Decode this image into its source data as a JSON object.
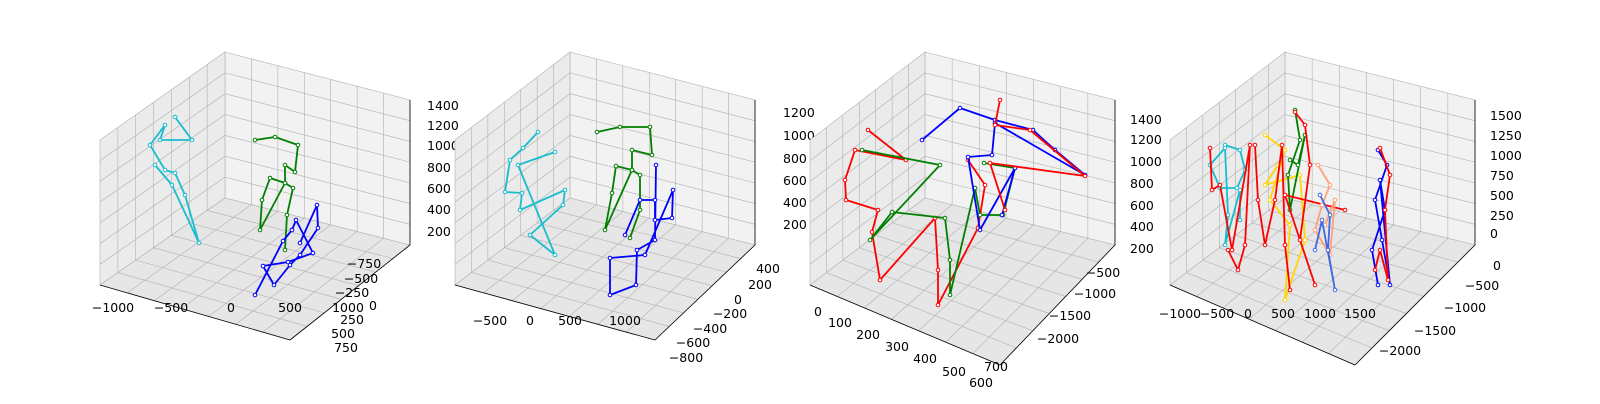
{
  "figure": {
    "background": "#ffffff",
    "pane_colors": [
      "#f2f2f2",
      "#ebebeb",
      "#e6e6e6"
    ],
    "grid_color": "#b0b0b0"
  },
  "chart_data": [
    {
      "type": "skeleton-3d",
      "x_ticks": [
        "−1000",
        "−500",
        "0",
        "500",
        "1000"
      ],
      "y_ticks": [
        "−750",
        "−500",
        "−250",
        "0",
        "250",
        "500",
        "750"
      ],
      "z_ticks": [
        "200",
        "400",
        "600",
        "800",
        "1000",
        "1200",
        "1400"
      ],
      "z_tick_labels": [
        "200",
        "400",
        "600",
        "800",
        "1000",
        "1200",
        "1400"
      ],
      "series": [
        {
          "color": "#17becf",
          "points": [
            [
              175,
              117
            ],
            [
              192,
              140
            ],
            [
              160,
              140
            ],
            [
              165,
              125
            ],
            [
              150,
              145
            ],
            [
              165,
              170
            ],
            [
              175,
              173
            ],
            [
              185,
              195
            ],
            [
              199,
              243
            ],
            [
              172,
              185
            ],
            [
              155,
              165
            ]
          ]
        },
        {
          "color": "#008000",
          "points": [
            [
              255,
              140
            ],
            [
              275,
              137
            ],
            [
              298,
              145
            ],
            [
              295,
              172
            ],
            [
              285,
              165
            ],
            [
              285,
              183
            ],
            [
              270,
              178
            ],
            [
              262,
              200
            ],
            [
              260,
              230
            ],
            [
              285,
              183
            ],
            [
              293,
              188
            ],
            [
              287,
              215
            ],
            [
              285,
              250
            ]
          ]
        },
        {
          "color": "#0000ff",
          "points": [
            [
              300,
              243
            ],
            [
              317,
              205
            ],
            [
              318,
              228
            ],
            [
              300,
              255
            ],
            [
              290,
              265
            ],
            [
              274,
              285
            ],
            [
              263,
              266
            ],
            [
              288,
              262
            ],
            [
              313,
              253
            ],
            [
              296,
              220
            ],
            [
              292,
              230
            ],
            [
              283,
              241
            ],
            [
              255,
              295
            ]
          ]
        }
      ]
    },
    {
      "type": "skeleton-3d",
      "x_ticks": [
        "−500",
        "0",
        "500",
        "1000"
      ],
      "y_ticks": [
        "−800",
        "−600",
        "−400",
        "−200",
        "0",
        "200",
        "400"
      ],
      "z_ticks": [
        "200",
        "400",
        "600",
        "800",
        "1000",
        "1200"
      ],
      "z_tick_labels": [
        "200",
        "400",
        "600",
        "800",
        "1000",
        "1200"
      ],
      "series": [
        {
          "color": "#17becf",
          "points": [
            [
              538,
              132
            ],
            [
              523,
              148
            ],
            [
              510,
              160
            ],
            [
              505,
              192
            ],
            [
              522,
              193
            ],
            [
              520,
              210
            ],
            [
              565,
              190
            ],
            [
              563,
              205
            ],
            [
              530,
              235
            ],
            [
              555,
              255
            ],
            [
              518,
              165
            ],
            [
              555,
              152
            ]
          ]
        },
        {
          "color": "#008000",
          "points": [
            [
              597,
              132
            ],
            [
              620,
              127
            ],
            [
              650,
              127
            ],
            [
              652,
              155
            ],
            [
              632,
              150
            ],
            [
              632,
              170
            ],
            [
              616,
              166
            ],
            [
              612,
              193
            ],
            [
              605,
              230
            ],
            [
              632,
              170
            ],
            [
              640,
              175
            ],
            [
              640,
              210
            ],
            [
              630,
              238
            ]
          ]
        },
        {
          "color": "#0000ff",
          "points": [
            [
              656,
              165
            ],
            [
              655,
              240
            ],
            [
              637,
              250
            ],
            [
              636,
              285
            ],
            [
              610,
              295
            ],
            [
              610,
              258
            ],
            [
              645,
              255
            ],
            [
              673,
              190
            ],
            [
              672,
              218
            ],
            [
              655,
              220
            ],
            [
              655,
              200
            ],
            [
              640,
              200
            ],
            [
              625,
              235
            ]
          ]
        }
      ]
    },
    {
      "type": "skeleton-3d",
      "x_ticks": [
        "0",
        "100",
        "200",
        "300",
        "400",
        "500",
        "600",
        "700"
      ],
      "y_ticks": [
        "−2000",
        "−1500",
        "−1000",
        "−500"
      ],
      "z_ticks": [
        "200",
        "400",
        "600",
        "800",
        "1000",
        "1200",
        "1400"
      ],
      "z_tick_labels": [
        "200",
        "400",
        "600",
        "800",
        "1000",
        "1200",
        "1400"
      ],
      "series": [
        {
          "color": "#ff0000",
          "points": [
            [
              868,
              130
            ],
            [
              906,
              160
            ],
            [
              855,
              150
            ],
            [
              845,
              180
            ],
            [
              846,
              200
            ],
            [
              878,
              210
            ],
            [
              872,
              232
            ],
            [
              880,
              280
            ],
            [
              935,
              218
            ],
            [
              938,
              270
            ],
            [
              938,
              305
            ],
            [
              978,
              228
            ],
            [
              985,
              185
            ],
            [
              968,
              160
            ]
          ]
        },
        {
          "color": "#008000",
          "points": [
            [
              862,
              150
            ],
            [
              940,
              165
            ],
            [
              870,
              240
            ],
            [
              892,
              212
            ],
            [
              945,
              218
            ],
            [
              950,
              260
            ],
            [
              950,
              295
            ],
            [
              975,
              188
            ],
            [
              980,
              215
            ],
            [
              1003,
              215
            ],
            [
              1015,
              168
            ],
            [
              984,
              163
            ]
          ]
        },
        {
          "color": "#0000ff",
          "points": [
            [
              922,
              140
            ],
            [
              960,
              108
            ],
            [
              995,
              120
            ],
            [
              1033,
              130
            ],
            [
              1055,
              150
            ],
            [
              1085,
              175
            ],
            [
              995,
              123
            ],
            [
              992,
              155
            ],
            [
              968,
              157
            ],
            [
              980,
              230
            ],
            [
              1015,
              168
            ],
            [
              1002,
              215
            ]
          ]
        },
        {
          "color": "#ff0000",
          "points": [
            [
              1000,
              100
            ],
            [
              995,
              125
            ],
            [
              1030,
              130
            ],
            [
              1085,
              176
            ],
            [
              990,
              163
            ],
            [
              1005,
              210
            ]
          ]
        }
      ]
    },
    {
      "type": "skeleton-3d",
      "x_ticks": [
        "−1000",
        "−500",
        "0",
        "500",
        "1000",
        "1500"
      ],
      "y_ticks": [
        "−2000",
        "−1500",
        "−1000",
        "−500",
        "0"
      ],
      "z_ticks": [
        "0",
        "250",
        "500",
        "750",
        "1000",
        "1250",
        "1500"
      ],
      "z_tick_labels": [
        "0",
        "250",
        "500",
        "750",
        "1000",
        "1250",
        "1500"
      ],
      "series": [
        {
          "color": "#17becf",
          "points": [
            [
              1225,
              145
            ],
            [
              1240,
              150
            ],
            [
              1245,
              170
            ],
            [
              1237,
              188
            ],
            [
              1220,
              188
            ],
            [
              1210,
              165
            ],
            [
              1225,
              148
            ],
            [
              1228,
              215
            ],
            [
              1225,
              245
            ],
            [
              1240,
              190
            ],
            [
              1240,
              220
            ]
          ]
        },
        {
          "color": "#ff0000",
          "points": [
            [
              1210,
              148
            ],
            [
              1212,
              190
            ],
            [
              1220,
              185
            ],
            [
              1232,
              250
            ],
            [
              1250,
              145
            ],
            [
              1245,
              245
            ],
            [
              1238,
              270
            ],
            [
              1228,
              250
            ]
          ]
        },
        {
          "color": "#ffd700",
          "points": [
            [
              1265,
              135
            ],
            [
              1285,
              150
            ],
            [
              1270,
              200
            ],
            [
              1290,
              225
            ],
            [
              1285,
              300
            ],
            [
              1305,
              240
            ],
            [
              1300,
              175
            ],
            [
              1265,
              185
            ],
            [
              1278,
              165
            ]
          ]
        },
        {
          "color": "#ff0000",
          "points": [
            [
              1255,
              145
            ],
            [
              1258,
              200
            ],
            [
              1265,
              245
            ],
            [
              1275,
              200
            ],
            [
              1282,
              145
            ],
            [
              1285,
              245
            ],
            [
              1290,
              290
            ]
          ]
        },
        {
          "color": "#008000",
          "points": [
            [
              1295,
              110
            ],
            [
              1300,
              140
            ],
            [
              1288,
              175
            ],
            [
              1290,
              210
            ],
            [
              1305,
              135
            ],
            [
              1298,
              165
            ],
            [
              1290,
              160
            ]
          ]
        },
        {
          "color": "#ff0000",
          "points": [
            [
              1295,
              112
            ],
            [
              1305,
              125
            ],
            [
              1310,
              165
            ],
            [
              1300,
              240
            ],
            [
              1315,
              285
            ],
            [
              1285,
              195
            ],
            [
              1345,
              210
            ]
          ]
        },
        {
          "color": "#ffa07a",
          "points": [
            [
              1318,
              165
            ],
            [
              1330,
              185
            ],
            [
              1322,
              205
            ],
            [
              1315,
              230
            ],
            [
              1330,
              255
            ],
            [
              1335,
              200
            ],
            [
              1325,
              225
            ]
          ]
        },
        {
          "color": "#4169e1",
          "points": [
            [
              1320,
              195
            ],
            [
              1330,
              215
            ],
            [
              1328,
              250
            ],
            [
              1335,
              290
            ],
            [
              1322,
              220
            ],
            [
              1315,
              250
            ]
          ]
        },
        {
          "color": "#0000ff",
          "points": [
            [
              1378,
              150
            ],
            [
              1387,
              165
            ],
            [
              1375,
              200
            ],
            [
              1382,
              240
            ],
            [
              1390,
              285
            ],
            [
              1380,
              180
            ],
            [
              1385,
              210
            ],
            [
              1372,
              250
            ],
            [
              1378,
              285
            ]
          ]
        },
        {
          "color": "#ff0000",
          "points": [
            [
              1380,
              148
            ],
            [
              1390,
              175
            ],
            [
              1385,
              210
            ],
            [
              1388,
              280
            ],
            [
              1380,
              250
            ],
            [
              1375,
              270
            ]
          ]
        }
      ]
    }
  ]
}
